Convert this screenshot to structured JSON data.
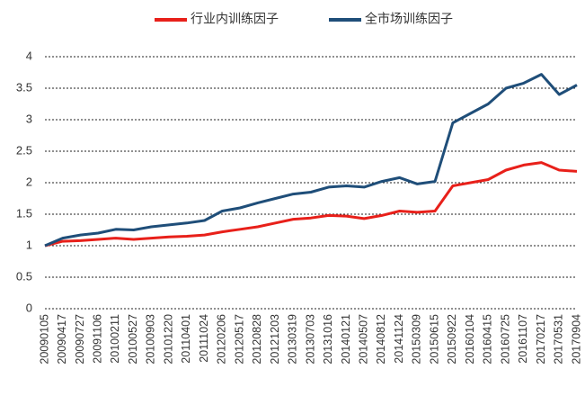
{
  "chart_data": {
    "type": "line",
    "categories": [
      "20090105",
      "20090417",
      "20090727",
      "20091106",
      "20100211",
      "20100527",
      "20100903",
      "20101220",
      "20110401",
      "20111024",
      "20120206",
      "20120517",
      "20120828",
      "20121203",
      "20130319",
      "20130703",
      "20131016",
      "20140121",
      "20140507",
      "20140812",
      "20141124",
      "20150309",
      "20150615",
      "20150922",
      "20160104",
      "20160415",
      "20160725",
      "20161107",
      "20170217",
      "20170531",
      "20170904"
    ],
    "series": [
      {
        "name": "行业内训练因子",
        "color": "#e8201a",
        "values": [
          1.0,
          1.07,
          1.08,
          1.1,
          1.12,
          1.1,
          1.12,
          1.14,
          1.15,
          1.17,
          1.22,
          1.26,
          1.3,
          1.36,
          1.42,
          1.44,
          1.48,
          1.47,
          1.43,
          1.48,
          1.55,
          1.53,
          1.55,
          1.95,
          2.0,
          2.05,
          2.2,
          2.28,
          2.32,
          2.2,
          2.18
        ]
      },
      {
        "name": "全市场训练因子",
        "color": "#1f4e79",
        "values": [
          1.0,
          1.12,
          1.17,
          1.2,
          1.26,
          1.25,
          1.3,
          1.33,
          1.36,
          1.4,
          1.55,
          1.6,
          1.68,
          1.75,
          1.82,
          1.85,
          1.93,
          1.95,
          1.93,
          2.02,
          2.08,
          1.98,
          2.02,
          2.95,
          3.1,
          3.25,
          3.5,
          3.58,
          3.72,
          3.4,
          3.55
        ]
      }
    ],
    "ylim": [
      0,
      4
    ],
    "yticks": [
      0,
      0.5,
      1,
      1.5,
      2,
      2.5,
      3,
      3.5,
      4
    ],
    "grid": true,
    "legend": "top"
  }
}
